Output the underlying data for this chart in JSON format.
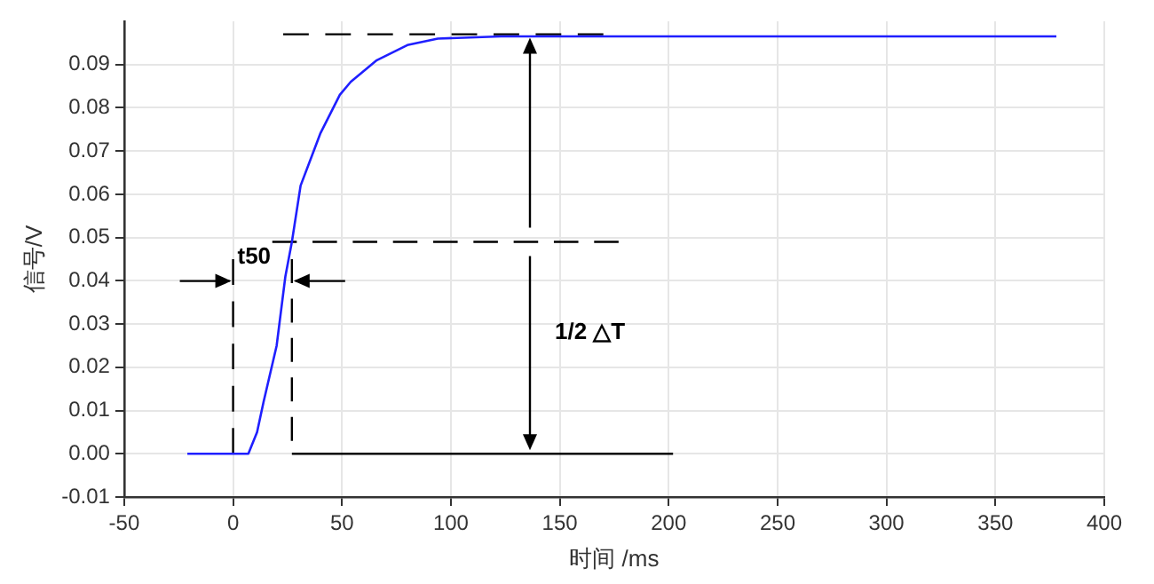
{
  "chart_data": {
    "type": "line",
    "xlabel": "时间 /ms",
    "ylabel": "信号/V",
    "xlim": [
      -50,
      400
    ],
    "xticks": [
      -50,
      0,
      50,
      100,
      150,
      200,
      250,
      300,
      350,
      400
    ],
    "ylim": [
      -0.01,
      0.1
    ],
    "yticks": [
      {
        "value": -0.01,
        "label": "-0.01"
      },
      {
        "value": 0,
        "label": "0.00"
      },
      {
        "value": 0.01,
        "label": "0.01"
      },
      {
        "value": 0.02,
        "label": "0.02"
      },
      {
        "value": 0.03,
        "label": "0.03"
      },
      {
        "value": 0.04,
        "label": "0.04"
      },
      {
        "value": 0.05,
        "label": "0.05"
      },
      {
        "value": 0.06,
        "label": "0.06"
      },
      {
        "value": 0.07,
        "label": "0.07"
      },
      {
        "value": 0.08,
        "label": "0.08"
      },
      {
        "value": 0.09,
        "label": "0.09"
      }
    ],
    "grid": true,
    "legend": false,
    "marker": "none",
    "series": [
      {
        "color": "#1f1fff",
        "line_style": "solid",
        "x": [
          -21,
          0,
          7,
          11,
          14,
          20,
          24,
          27,
          31,
          37,
          40,
          49,
          54,
          66,
          80,
          94,
          123,
          200,
          300,
          378
        ],
        "values": [
          0,
          0,
          0,
          0.005,
          0.012,
          0.025,
          0.041,
          0.049,
          0.062,
          0.07,
          0.074,
          0.083,
          0.086,
          0.091,
          0.0945,
          0.096,
          0.0965,
          0.0965,
          0.0965,
          0.0965
        ]
      },
      {
        "color": "#000000",
        "line_style": "dashed",
        "x": [
          23,
          170
        ],
        "values": [
          0.097,
          0.097
        ]
      },
      {
        "color": "#000000",
        "line_style": "dashed",
        "x": [
          18,
          177
        ],
        "values": [
          0.049,
          0.049
        ]
      },
      {
        "color": "#000000",
        "line_style": "solid",
        "x": [
          27,
          202
        ],
        "values": [
          0,
          0
        ]
      },
      {
        "color": "#000000",
        "line_style": "dashed",
        "x": [
          0,
          0
        ],
        "values": [
          0,
          0.045
        ]
      },
      {
        "color": "#000000",
        "line_style": "dashed",
        "x": [
          27,
          27
        ],
        "values": [
          0.003,
          0.045
        ]
      }
    ],
    "annotations": [
      {
        "text": "t50",
        "x": 2,
        "y": 0.042
      },
      "1/2 △T"
    ]
  }
}
